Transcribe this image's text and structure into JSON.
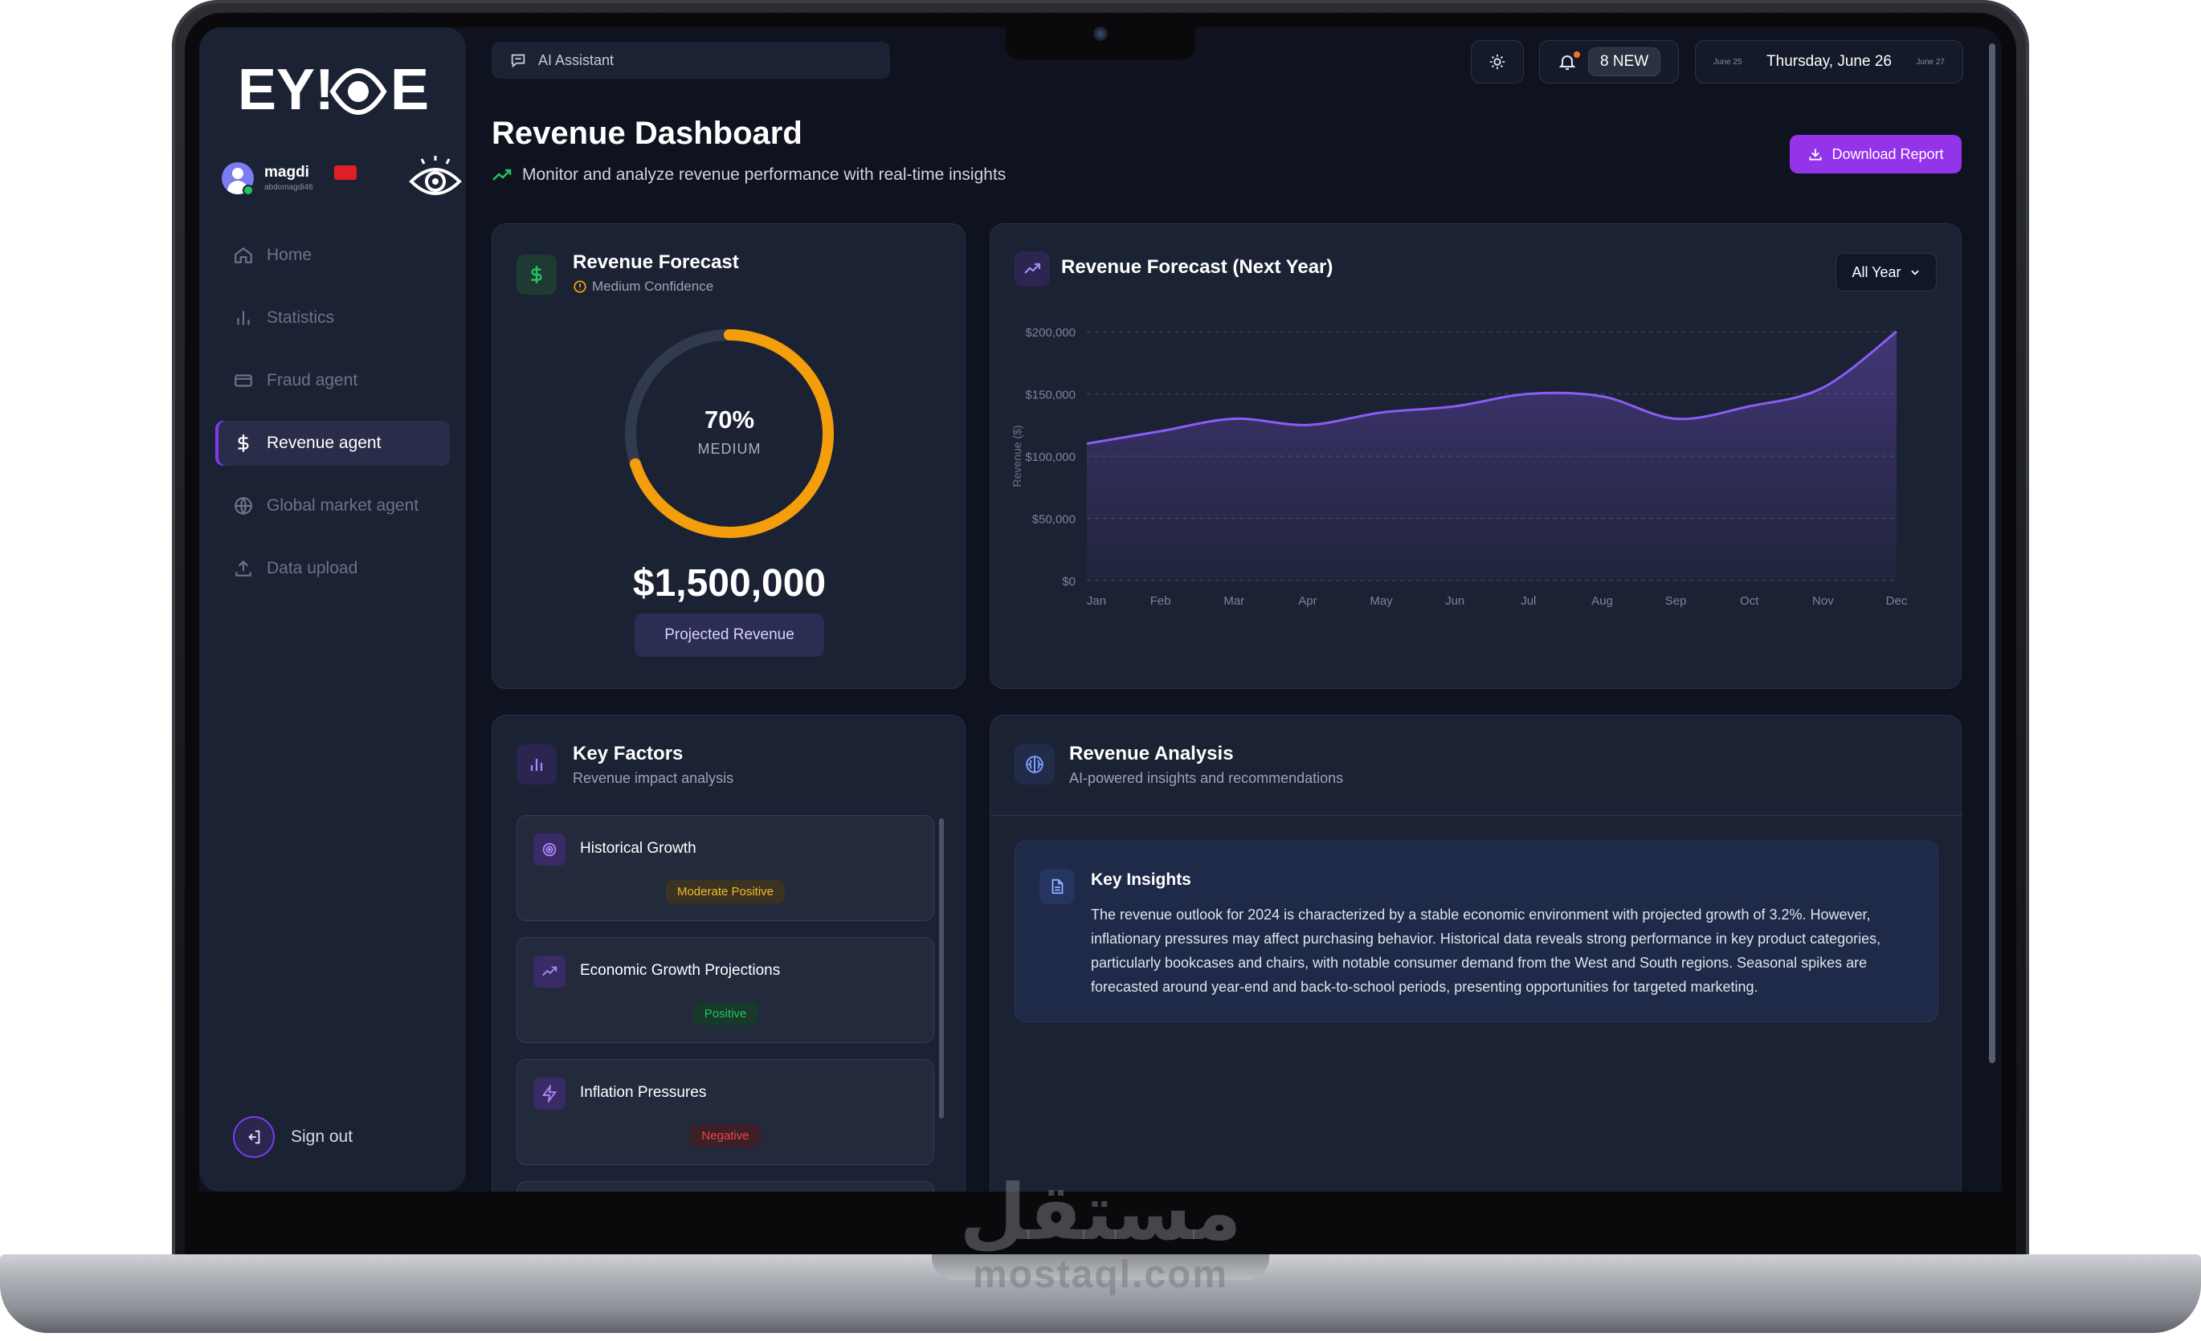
{
  "brand": {
    "logo_text": "EYIOE"
  },
  "user": {
    "name": "magdi",
    "email": "abdomagdi46"
  },
  "nav": {
    "items": [
      {
        "label": "Home",
        "icon": "home-icon"
      },
      {
        "label": "Statistics",
        "icon": "bar-chart-icon"
      },
      {
        "label": "Fraud agent",
        "icon": "credit-card-icon"
      },
      {
        "label": "Revenue agent",
        "icon": "dollar-icon",
        "active": true
      },
      {
        "label": "Global market agent",
        "icon": "globe-icon"
      },
      {
        "label": "Data upload",
        "icon": "upload-icon"
      }
    ],
    "signout": "Sign out"
  },
  "topbar": {
    "ai_assistant": "AI Assistant",
    "notifications": "8 NEW",
    "date_prev": "June 25",
    "date_current": "Thursday, June 26",
    "date_next": "June 27"
  },
  "header": {
    "title": "Revenue Dashboard",
    "subtitle": "Monitor and analyze revenue performance with real-time insights",
    "download_label": "Download Report"
  },
  "forecast_card": {
    "title": "Revenue Forecast",
    "confidence": "Medium Confidence",
    "percent_label": "70%",
    "percent_value": 0.7,
    "level": "MEDIUM",
    "amount": "$1,500,000",
    "amount_label": "Projected Revenue",
    "accent": "#f59e0b"
  },
  "chart_card": {
    "title": "Revenue Forecast (Next Year)",
    "select_value": "All Year"
  },
  "chart_data": {
    "type": "area",
    "title": "Revenue Forecast (Next Year)",
    "ylabel": "Revenue ($)",
    "xlabel": "",
    "categories": [
      "Jan",
      "Feb",
      "Mar",
      "Apr",
      "May",
      "Jun",
      "Jul",
      "Aug",
      "Sep",
      "Oct",
      "Nov",
      "Dec"
    ],
    "values": [
      110000,
      120000,
      130000,
      125000,
      135000,
      140000,
      150000,
      148000,
      130000,
      140000,
      155000,
      200000
    ],
    "yticks": [
      "$0",
      "$50,000",
      "$100,000",
      "$150,000",
      "$200,000"
    ],
    "ylim": [
      0,
      200000
    ],
    "grid": true,
    "color": "#8b5cf6"
  },
  "factors_card": {
    "title": "Key Factors",
    "subtitle": "Revenue impact analysis",
    "items": [
      {
        "name": "Historical Growth",
        "impact": "Moderate Positive",
        "color": "#f5b82e",
        "bg": "#3b3322",
        "icon": "target-icon"
      },
      {
        "name": "Economic Growth Projections",
        "impact": "Positive",
        "color": "#22c55e",
        "bg": "#17382a",
        "icon": "trend-up-icon"
      },
      {
        "name": "Inflation Pressures",
        "impact": "Negative",
        "color": "#ef4444",
        "bg": "#3d2027",
        "icon": "bolt-icon"
      }
    ]
  },
  "analysis_card": {
    "title": "Revenue Analysis",
    "subtitle": "AI-powered insights and recommendations",
    "insight_title": "Key Insights",
    "insight_text": "The revenue outlook for 2024 is characterized by a stable economic environment with projected growth of 3.2%. However, inflationary pressures may affect purchasing behavior. Historical data reveals strong performance in key product categories, particularly bookcases and chairs, with notable consumer demand from the West and South regions. Seasonal spikes are forecasted around year-end and back-to-school periods, presenting opportunities for targeted marketing."
  },
  "watermark": {
    "arabic": "مستقل",
    "latin": "mostaql.com"
  }
}
